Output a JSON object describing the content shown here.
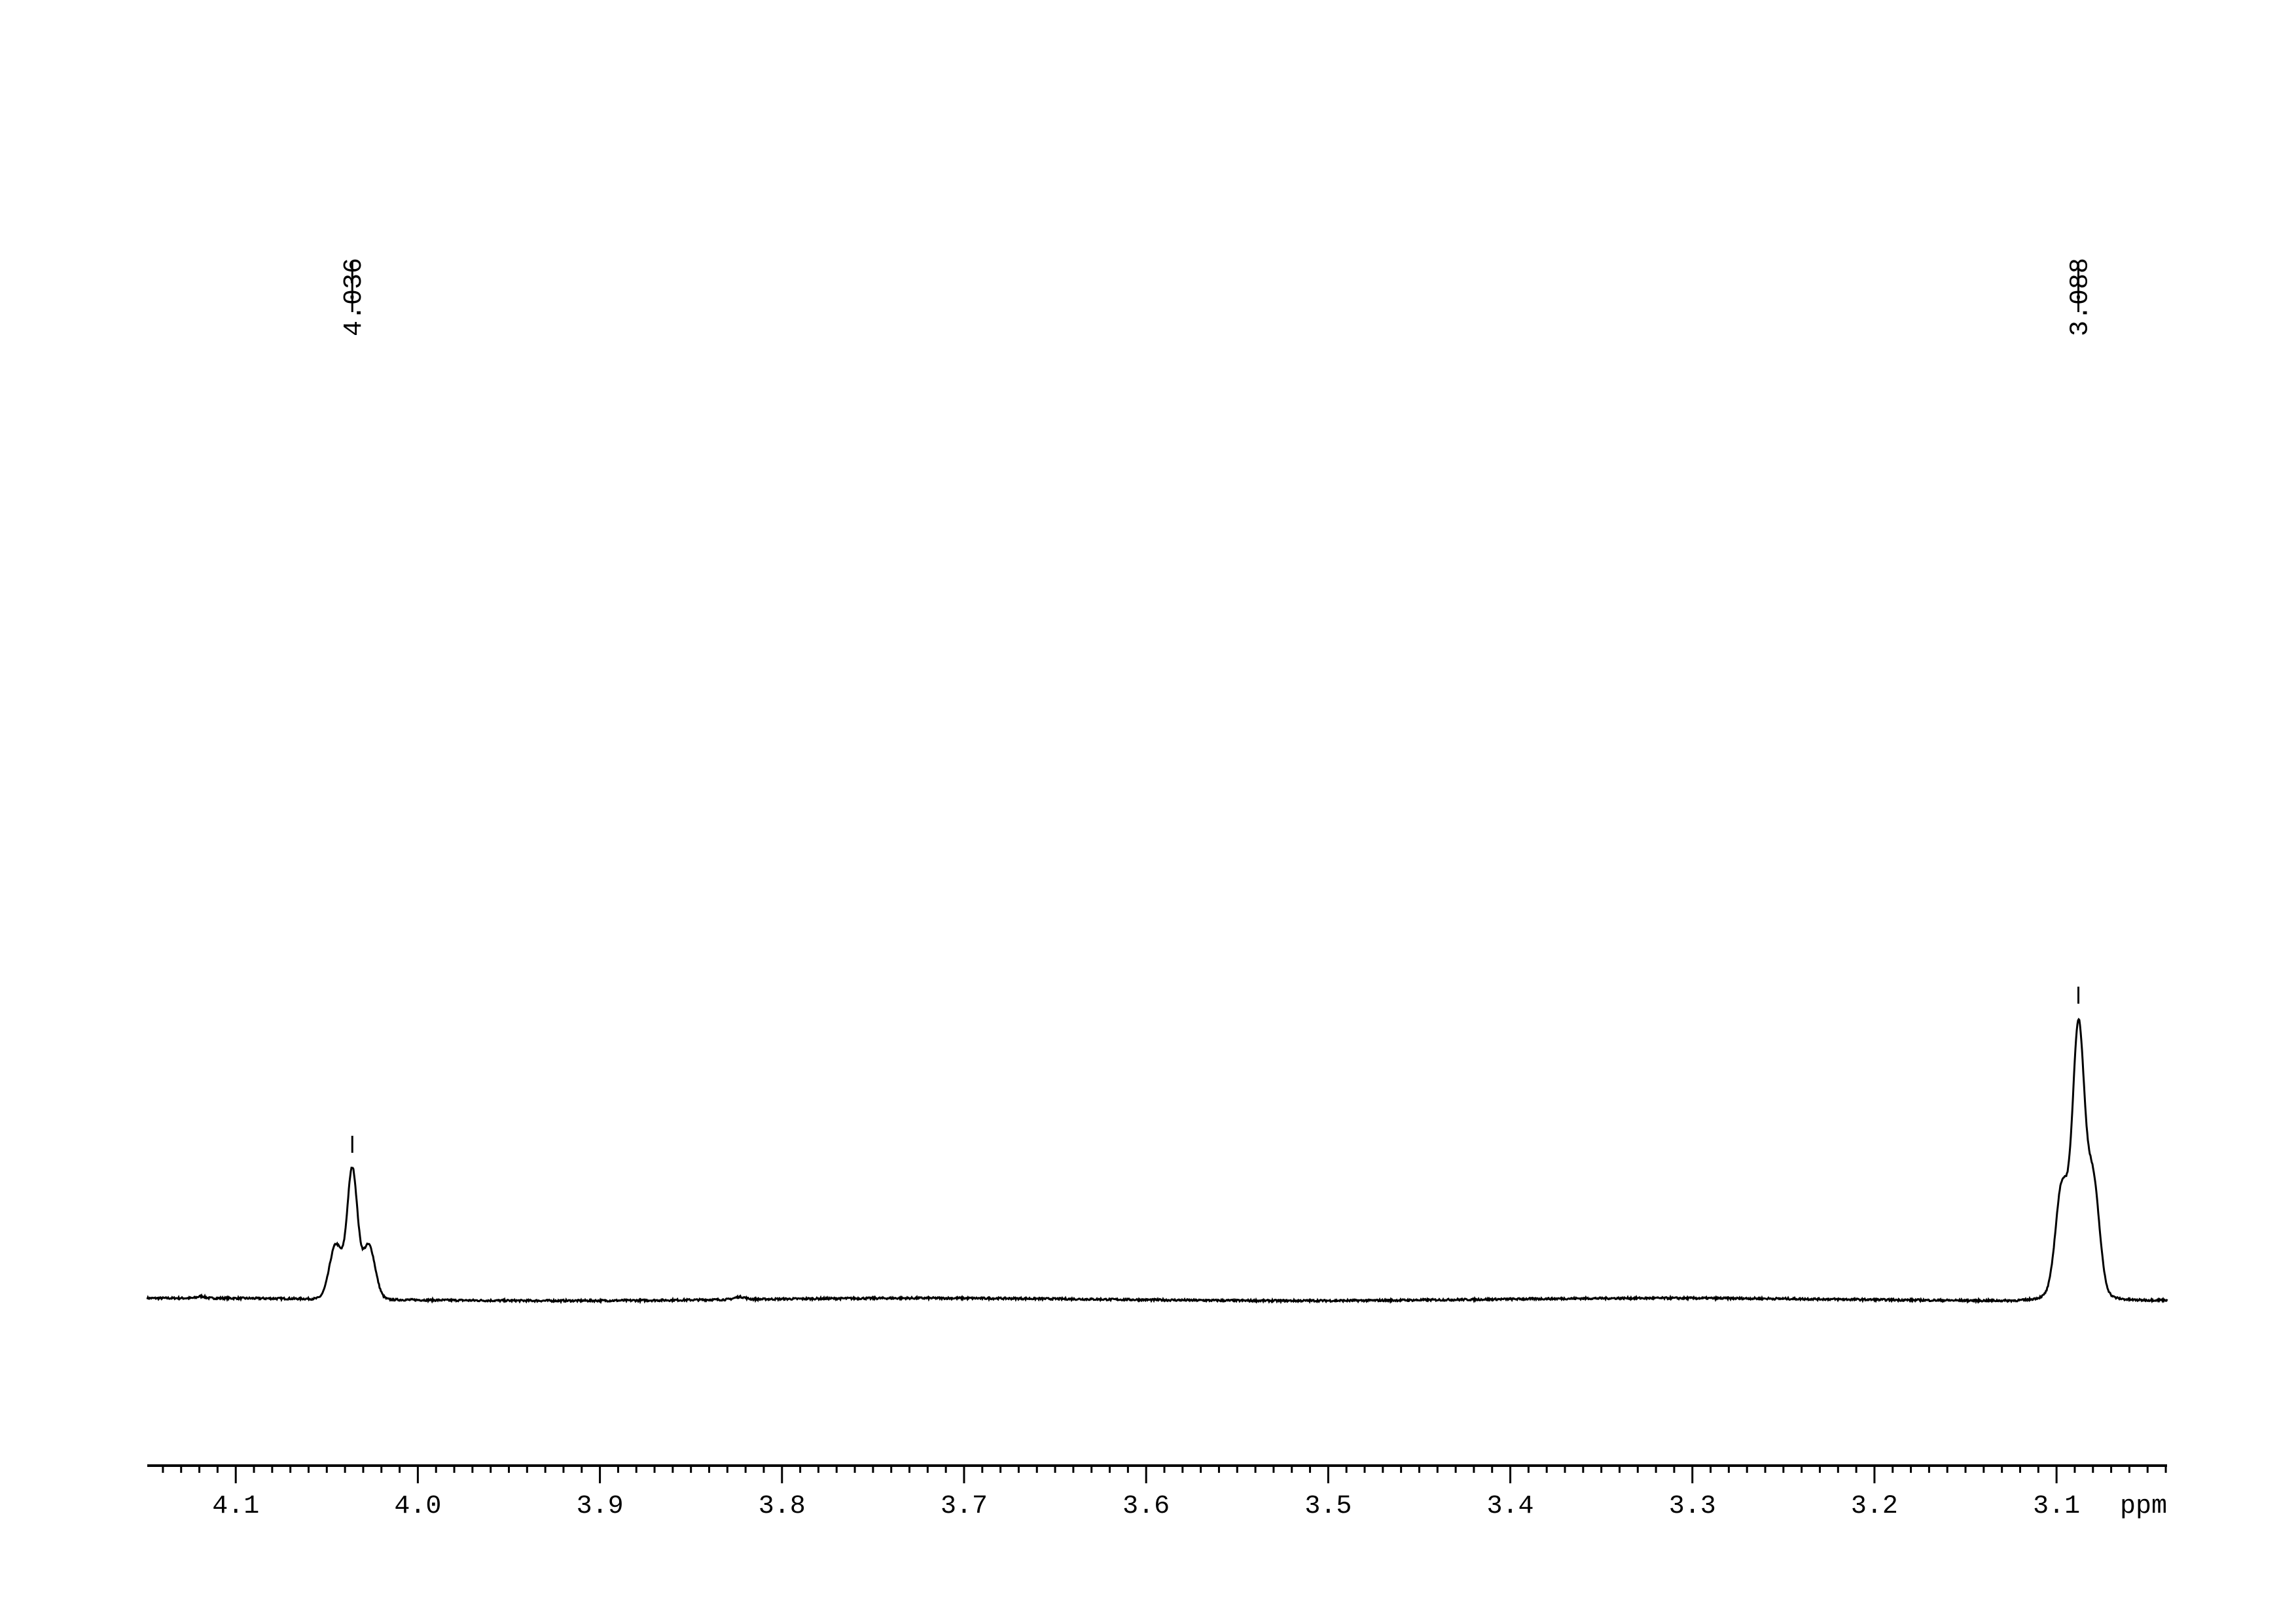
{
  "chart_data": {
    "type": "line",
    "title": "",
    "xlabel": "ppm",
    "ylabel": "",
    "xlim": [
      4.1486,
      3.0393
    ],
    "x_reversed": true,
    "grid": false,
    "x_ticks": {
      "major_step": 0.1,
      "minor_step": 0.01,
      "labels": [
        "4.1",
        "4.0",
        "3.9",
        "3.8",
        "3.7",
        "3.6",
        "3.5",
        "3.4",
        "3.3",
        "3.2",
        "3.1"
      ],
      "label_values": [
        4.1,
        4.0,
        3.9,
        3.8,
        3.7,
        3.6,
        3.5,
        3.4,
        3.3,
        3.2,
        3.1
      ]
    },
    "peak_labels": [
      {
        "ppm": 4.036,
        "text": "4.036"
      },
      {
        "ppm": 3.088,
        "text": "3.088"
      }
    ],
    "series": [
      {
        "line_color": "#000000",
        "relative_intensity_max": 1.0,
        "peaks": [
          {
            "center": 4.036,
            "height": 0.52,
            "components": [
              {
                "ppm": 4.045,
                "h": 0.17,
                "w": 0.0035
              },
              {
                "ppm": 4.036,
                "h": 0.4,
                "w": 0.0028
              },
              {
                "ppm": 4.027,
                "h": 0.17,
                "w": 0.0035
              }
            ]
          },
          {
            "center": 3.088,
            "height": 1.0,
            "components": [
              {
                "ppm": 3.097,
                "h": 0.33,
                "w": 0.0035
              },
              {
                "ppm": 3.088,
                "h": 0.8,
                "w": 0.0032
              },
              {
                "ppm": 3.08,
                "h": 0.35,
                "w": 0.0035
              },
              {
                "ppm": 3.089,
                "h": 0.04,
                "w": 0.012
              }
            ]
          },
          {
            "center": 3.823,
            "height": 0.008,
            "components": [
              {
                "ppm": 3.823,
                "h": 0.008,
                "w": 0.003
              }
            ]
          },
          {
            "center": 4.119,
            "height": 0.006,
            "components": [
              {
                "ppm": 4.119,
                "h": 0.006,
                "w": 0.002
              }
            ]
          }
        ]
      }
    ]
  }
}
